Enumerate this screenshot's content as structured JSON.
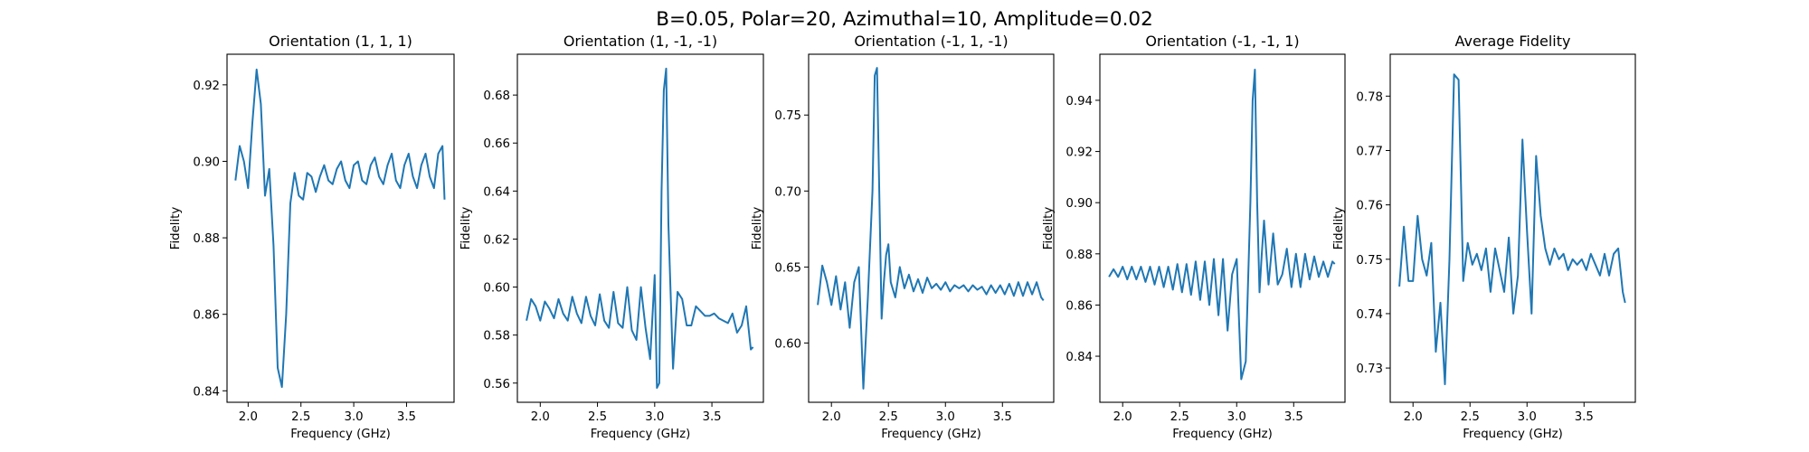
{
  "figure": {
    "suptitle": "B=0.05, Polar=20, Azimuthal=10, Amplitude=0.02"
  },
  "chart_data": [
    {
      "type": "line",
      "title": "Orientation (1, 1, 1)",
      "xlabel": "Frequency (GHz)",
      "ylabel": "Fidelity",
      "xlim": [
        1.8,
        3.95
      ],
      "ylim": [
        0.837,
        0.928
      ],
      "xticks": [
        "2.0",
        "2.5",
        "3.0",
        "3.5"
      ],
      "yticks": [
        "0.84",
        "0.86",
        "0.88",
        "0.90",
        "0.92"
      ],
      "series": [
        {
          "color": "#1f77b4",
          "x": [
            1.88,
            1.92,
            1.96,
            2.0,
            2.04,
            2.08,
            2.12,
            2.16,
            2.2,
            2.24,
            2.28,
            2.32,
            2.36,
            2.4,
            2.44,
            2.48,
            2.52,
            2.56,
            2.6,
            2.64,
            2.68,
            2.72,
            2.76,
            2.8,
            2.84,
            2.88,
            2.92,
            2.96,
            3.0,
            3.04,
            3.08,
            3.12,
            3.16,
            3.2,
            3.24,
            3.28,
            3.32,
            3.36,
            3.4,
            3.44,
            3.48,
            3.52,
            3.56,
            3.6,
            3.64,
            3.68,
            3.72,
            3.76,
            3.8,
            3.84,
            3.86
          ],
          "y": [
            0.895,
            0.904,
            0.9,
            0.893,
            0.91,
            0.924,
            0.915,
            0.891,
            0.898,
            0.878,
            0.846,
            0.841,
            0.86,
            0.889,
            0.897,
            0.891,
            0.89,
            0.897,
            0.896,
            0.892,
            0.896,
            0.899,
            0.895,
            0.894,
            0.898,
            0.9,
            0.895,
            0.893,
            0.899,
            0.9,
            0.895,
            0.894,
            0.899,
            0.901,
            0.896,
            0.894,
            0.899,
            0.902,
            0.895,
            0.893,
            0.899,
            0.902,
            0.896,
            0.893,
            0.899,
            0.902,
            0.896,
            0.893,
            0.902,
            0.904,
            0.89
          ]
        }
      ]
    },
    {
      "type": "line",
      "title": "Orientation (1, -1, -1)",
      "xlabel": "Frequency (GHz)",
      "ylabel": "Fidelity",
      "xlim": [
        1.8,
        3.95
      ],
      "ylim": [
        0.552,
        0.697
      ],
      "xticks": [
        "2.0",
        "2.5",
        "3.0",
        "3.5"
      ],
      "yticks": [
        "0.56",
        "0.58",
        "0.60",
        "0.62",
        "0.64",
        "0.66",
        "0.68"
      ],
      "series": [
        {
          "color": "#1f77b4",
          "x": [
            1.88,
            1.92,
            1.96,
            2.0,
            2.04,
            2.08,
            2.12,
            2.16,
            2.2,
            2.24,
            2.28,
            2.32,
            2.36,
            2.4,
            2.44,
            2.48,
            2.52,
            2.56,
            2.6,
            2.64,
            2.68,
            2.72,
            2.76,
            2.8,
            2.84,
            2.88,
            2.92,
            2.96,
            3.0,
            3.02,
            3.04,
            3.06,
            3.08,
            3.1,
            3.12,
            3.16,
            3.2,
            3.24,
            3.28,
            3.32,
            3.36,
            3.4,
            3.44,
            3.48,
            3.52,
            3.56,
            3.6,
            3.64,
            3.68,
            3.72,
            3.76,
            3.8,
            3.84,
            3.86
          ],
          "y": [
            0.586,
            0.595,
            0.592,
            0.586,
            0.594,
            0.591,
            0.587,
            0.595,
            0.589,
            0.586,
            0.596,
            0.589,
            0.585,
            0.596,
            0.588,
            0.584,
            0.597,
            0.586,
            0.583,
            0.598,
            0.585,
            0.583,
            0.6,
            0.582,
            0.578,
            0.6,
            0.583,
            0.57,
            0.605,
            0.558,
            0.56,
            0.64,
            0.682,
            0.691,
            0.626,
            0.566,
            0.598,
            0.595,
            0.584,
            0.584,
            0.592,
            0.59,
            0.588,
            0.588,
            0.589,
            0.587,
            0.586,
            0.585,
            0.589,
            0.581,
            0.584,
            0.592,
            0.574,
            0.575
          ]
        }
      ]
    },
    {
      "type": "line",
      "title": "Orientation (-1, 1, -1)",
      "xlabel": "Frequency (GHz)",
      "ylabel": "Fidelity",
      "xlim": [
        1.8,
        3.95
      ],
      "ylim": [
        0.561,
        0.79
      ],
      "xticks": [
        "2.0",
        "2.5",
        "3.0",
        "3.5"
      ],
      "yticks": [
        "0.60",
        "0.65",
        "0.70",
        "0.75"
      ],
      "series": [
        {
          "color": "#1f77b4",
          "x": [
            1.88,
            1.92,
            1.96,
            2.0,
            2.04,
            2.08,
            2.12,
            2.16,
            2.2,
            2.24,
            2.28,
            2.32,
            2.36,
            2.38,
            2.4,
            2.42,
            2.44,
            2.46,
            2.48,
            2.5,
            2.52,
            2.56,
            2.6,
            2.64,
            2.68,
            2.72,
            2.76,
            2.8,
            2.84,
            2.88,
            2.92,
            2.96,
            3.0,
            3.04,
            3.08,
            3.12,
            3.16,
            3.2,
            3.24,
            3.28,
            3.32,
            3.36,
            3.4,
            3.44,
            3.48,
            3.52,
            3.56,
            3.6,
            3.64,
            3.68,
            3.72,
            3.76,
            3.8,
            3.84,
            3.86
          ],
          "y": [
            0.625,
            0.651,
            0.64,
            0.625,
            0.644,
            0.622,
            0.64,
            0.61,
            0.64,
            0.65,
            0.57,
            0.63,
            0.7,
            0.776,
            0.781,
            0.7,
            0.616,
            0.64,
            0.658,
            0.665,
            0.64,
            0.63,
            0.65,
            0.636,
            0.645,
            0.634,
            0.642,
            0.633,
            0.643,
            0.636,
            0.639,
            0.635,
            0.64,
            0.634,
            0.638,
            0.636,
            0.638,
            0.634,
            0.638,
            0.635,
            0.637,
            0.632,
            0.638,
            0.633,
            0.638,
            0.632,
            0.639,
            0.631,
            0.64,
            0.631,
            0.64,
            0.632,
            0.64,
            0.63,
            0.628
          ]
        }
      ]
    },
    {
      "type": "line",
      "title": "Orientation (-1, -1, 1)",
      "xlabel": "Frequency (GHz)",
      "ylabel": "Fidelity",
      "xlim": [
        1.8,
        3.95
      ],
      "ylim": [
        0.822,
        0.958
      ],
      "xticks": [
        "2.0",
        "2.5",
        "3.0",
        "3.5"
      ],
      "yticks": [
        "0.84",
        "0.86",
        "0.88",
        "0.90",
        "0.92",
        "0.94"
      ],
      "series": [
        {
          "color": "#1f77b4",
          "x": [
            1.88,
            1.92,
            1.96,
            2.0,
            2.04,
            2.08,
            2.12,
            2.16,
            2.2,
            2.24,
            2.28,
            2.32,
            2.36,
            2.4,
            2.44,
            2.48,
            2.52,
            2.56,
            2.6,
            2.64,
            2.68,
            2.72,
            2.76,
            2.8,
            2.84,
            2.88,
            2.92,
            2.96,
            3.0,
            3.04,
            3.08,
            3.12,
            3.14,
            3.16,
            3.18,
            3.2,
            3.22,
            3.24,
            3.28,
            3.32,
            3.36,
            3.4,
            3.44,
            3.48,
            3.52,
            3.56,
            3.6,
            3.64,
            3.68,
            3.72,
            3.76,
            3.8,
            3.84,
            3.86
          ],
          "y": [
            0.871,
            0.874,
            0.871,
            0.875,
            0.87,
            0.875,
            0.87,
            0.875,
            0.869,
            0.875,
            0.868,
            0.875,
            0.867,
            0.875,
            0.866,
            0.876,
            0.865,
            0.876,
            0.864,
            0.877,
            0.862,
            0.877,
            0.86,
            0.878,
            0.856,
            0.878,
            0.85,
            0.872,
            0.878,
            0.831,
            0.838,
            0.9,
            0.94,
            0.952,
            0.9,
            0.865,
            0.88,
            0.893,
            0.868,
            0.888,
            0.868,
            0.872,
            0.882,
            0.867,
            0.88,
            0.867,
            0.88,
            0.87,
            0.879,
            0.871,
            0.877,
            0.871,
            0.877,
            0.876
          ]
        }
      ]
    },
    {
      "type": "line",
      "title": "Average Fidelity",
      "xlabel": "Frequency (GHz)",
      "ylabel": "Fidelity",
      "xlim": [
        1.8,
        3.95
      ],
      "ylim": [
        0.7237,
        0.7877
      ],
      "xticks": [
        "2.0",
        "2.5",
        "3.0",
        "3.5"
      ],
      "yticks": [
        "0.73",
        "0.74",
        "0.75",
        "0.76",
        "0.77",
        "0.78"
      ],
      "series": [
        {
          "color": "#1f77b4",
          "x": [
            1.88,
            1.92,
            1.96,
            2.0,
            2.04,
            2.08,
            2.12,
            2.16,
            2.2,
            2.24,
            2.28,
            2.32,
            2.36,
            2.4,
            2.44,
            2.48,
            2.52,
            2.56,
            2.6,
            2.64,
            2.68,
            2.72,
            2.76,
            2.8,
            2.84,
            2.88,
            2.92,
            2.96,
            3.0,
            3.04,
            3.08,
            3.12,
            3.16,
            3.2,
            3.24,
            3.28,
            3.32,
            3.36,
            3.4,
            3.44,
            3.48,
            3.52,
            3.56,
            3.6,
            3.64,
            3.68,
            3.72,
            3.76,
            3.8,
            3.84,
            3.86
          ],
          "y": [
            0.745,
            0.756,
            0.746,
            0.746,
            0.758,
            0.75,
            0.747,
            0.753,
            0.733,
            0.742,
            0.727,
            0.75,
            0.784,
            0.783,
            0.746,
            0.753,
            0.749,
            0.751,
            0.748,
            0.752,
            0.744,
            0.752,
            0.748,
            0.744,
            0.754,
            0.74,
            0.747,
            0.772,
            0.755,
            0.74,
            0.769,
            0.758,
            0.752,
            0.749,
            0.752,
            0.75,
            0.751,
            0.748,
            0.75,
            0.749,
            0.75,
            0.748,
            0.751,
            0.749,
            0.747,
            0.751,
            0.747,
            0.751,
            0.752,
            0.744,
            0.742
          ]
        }
      ]
    }
  ]
}
